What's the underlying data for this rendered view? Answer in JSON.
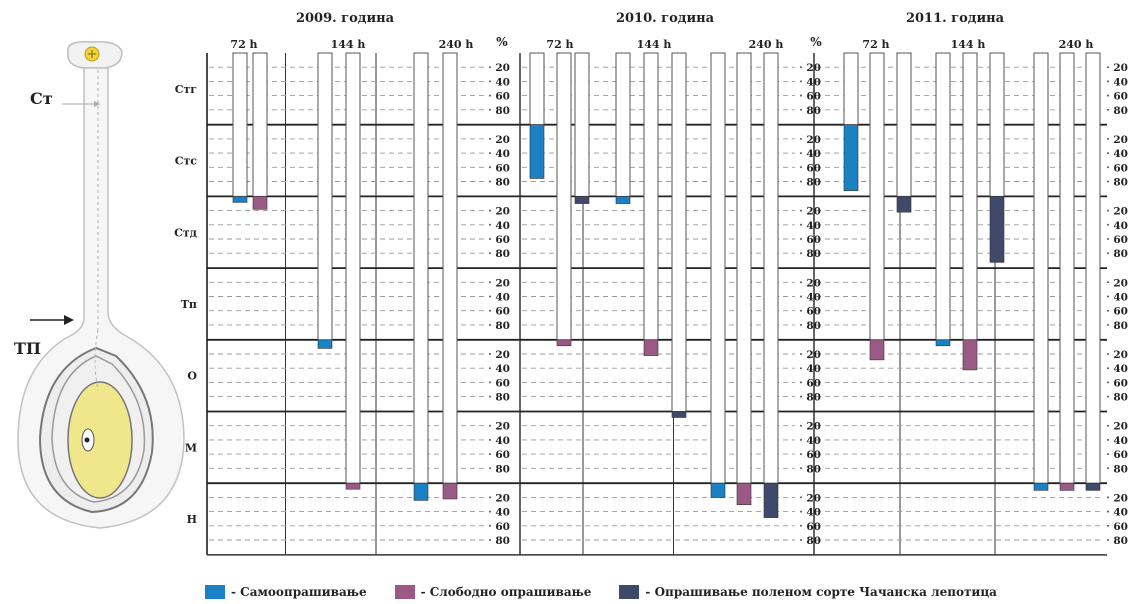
{
  "chart_data": {
    "type": "bar",
    "years": [
      "2009. година",
      "2010. година",
      "2011. година"
    ],
    "times": [
      "72 h",
      "144 h",
      "240 h"
    ],
    "percent_symbol": "%",
    "rows": [
      "Стг",
      "Стс",
      "Стд",
      "Тп",
      "О",
      "М",
      "Н"
    ],
    "ticks": [
      "20",
      "40",
      "60",
      "80"
    ],
    "series": [
      {
        "name": "Самоопрашивање",
        "color": "#1a82c4"
      },
      {
        "name": "Слободно опрашивање",
        "color": "#9b5a86"
      },
      {
        "name": "Опрашивање поленом сорте Чачанска лепотица",
        "color": "#3f4a6b"
      }
    ],
    "values": [
      [
        [
          [
            2,
            8
          ],
          [
            2,
            18
          ],
          null
        ],
        [
          [
            4,
            12
          ],
          [
            6,
            8
          ],
          null
        ],
        [
          [
            6,
            24
          ],
          [
            6,
            22
          ],
          null
        ]
      ],
      [
        [
          [
            1,
            75
          ],
          [
            4,
            5
          ],
          [
            2,
            10
          ]
        ],
        [
          [
            2,
            10
          ],
          [
            4,
            22
          ],
          [
            5,
            8
          ]
        ],
        [
          [
            6,
            20
          ],
          [
            6,
            30
          ],
          [
            6,
            48
          ]
        ]
      ],
      [
        [
          [
            1,
            92
          ],
          [
            4,
            28
          ],
          [
            2,
            22
          ]
        ],
        [
          [
            4,
            8
          ],
          [
            4,
            42
          ],
          [
            2,
            92
          ]
        ],
        [
          [
            6,
            10
          ],
          [
            6,
            10
          ],
          [
            6,
            10
          ]
        ]
      ]
    ]
  },
  "diagram": {
    "label_st": "Ст",
    "label_tp": "ТП"
  }
}
